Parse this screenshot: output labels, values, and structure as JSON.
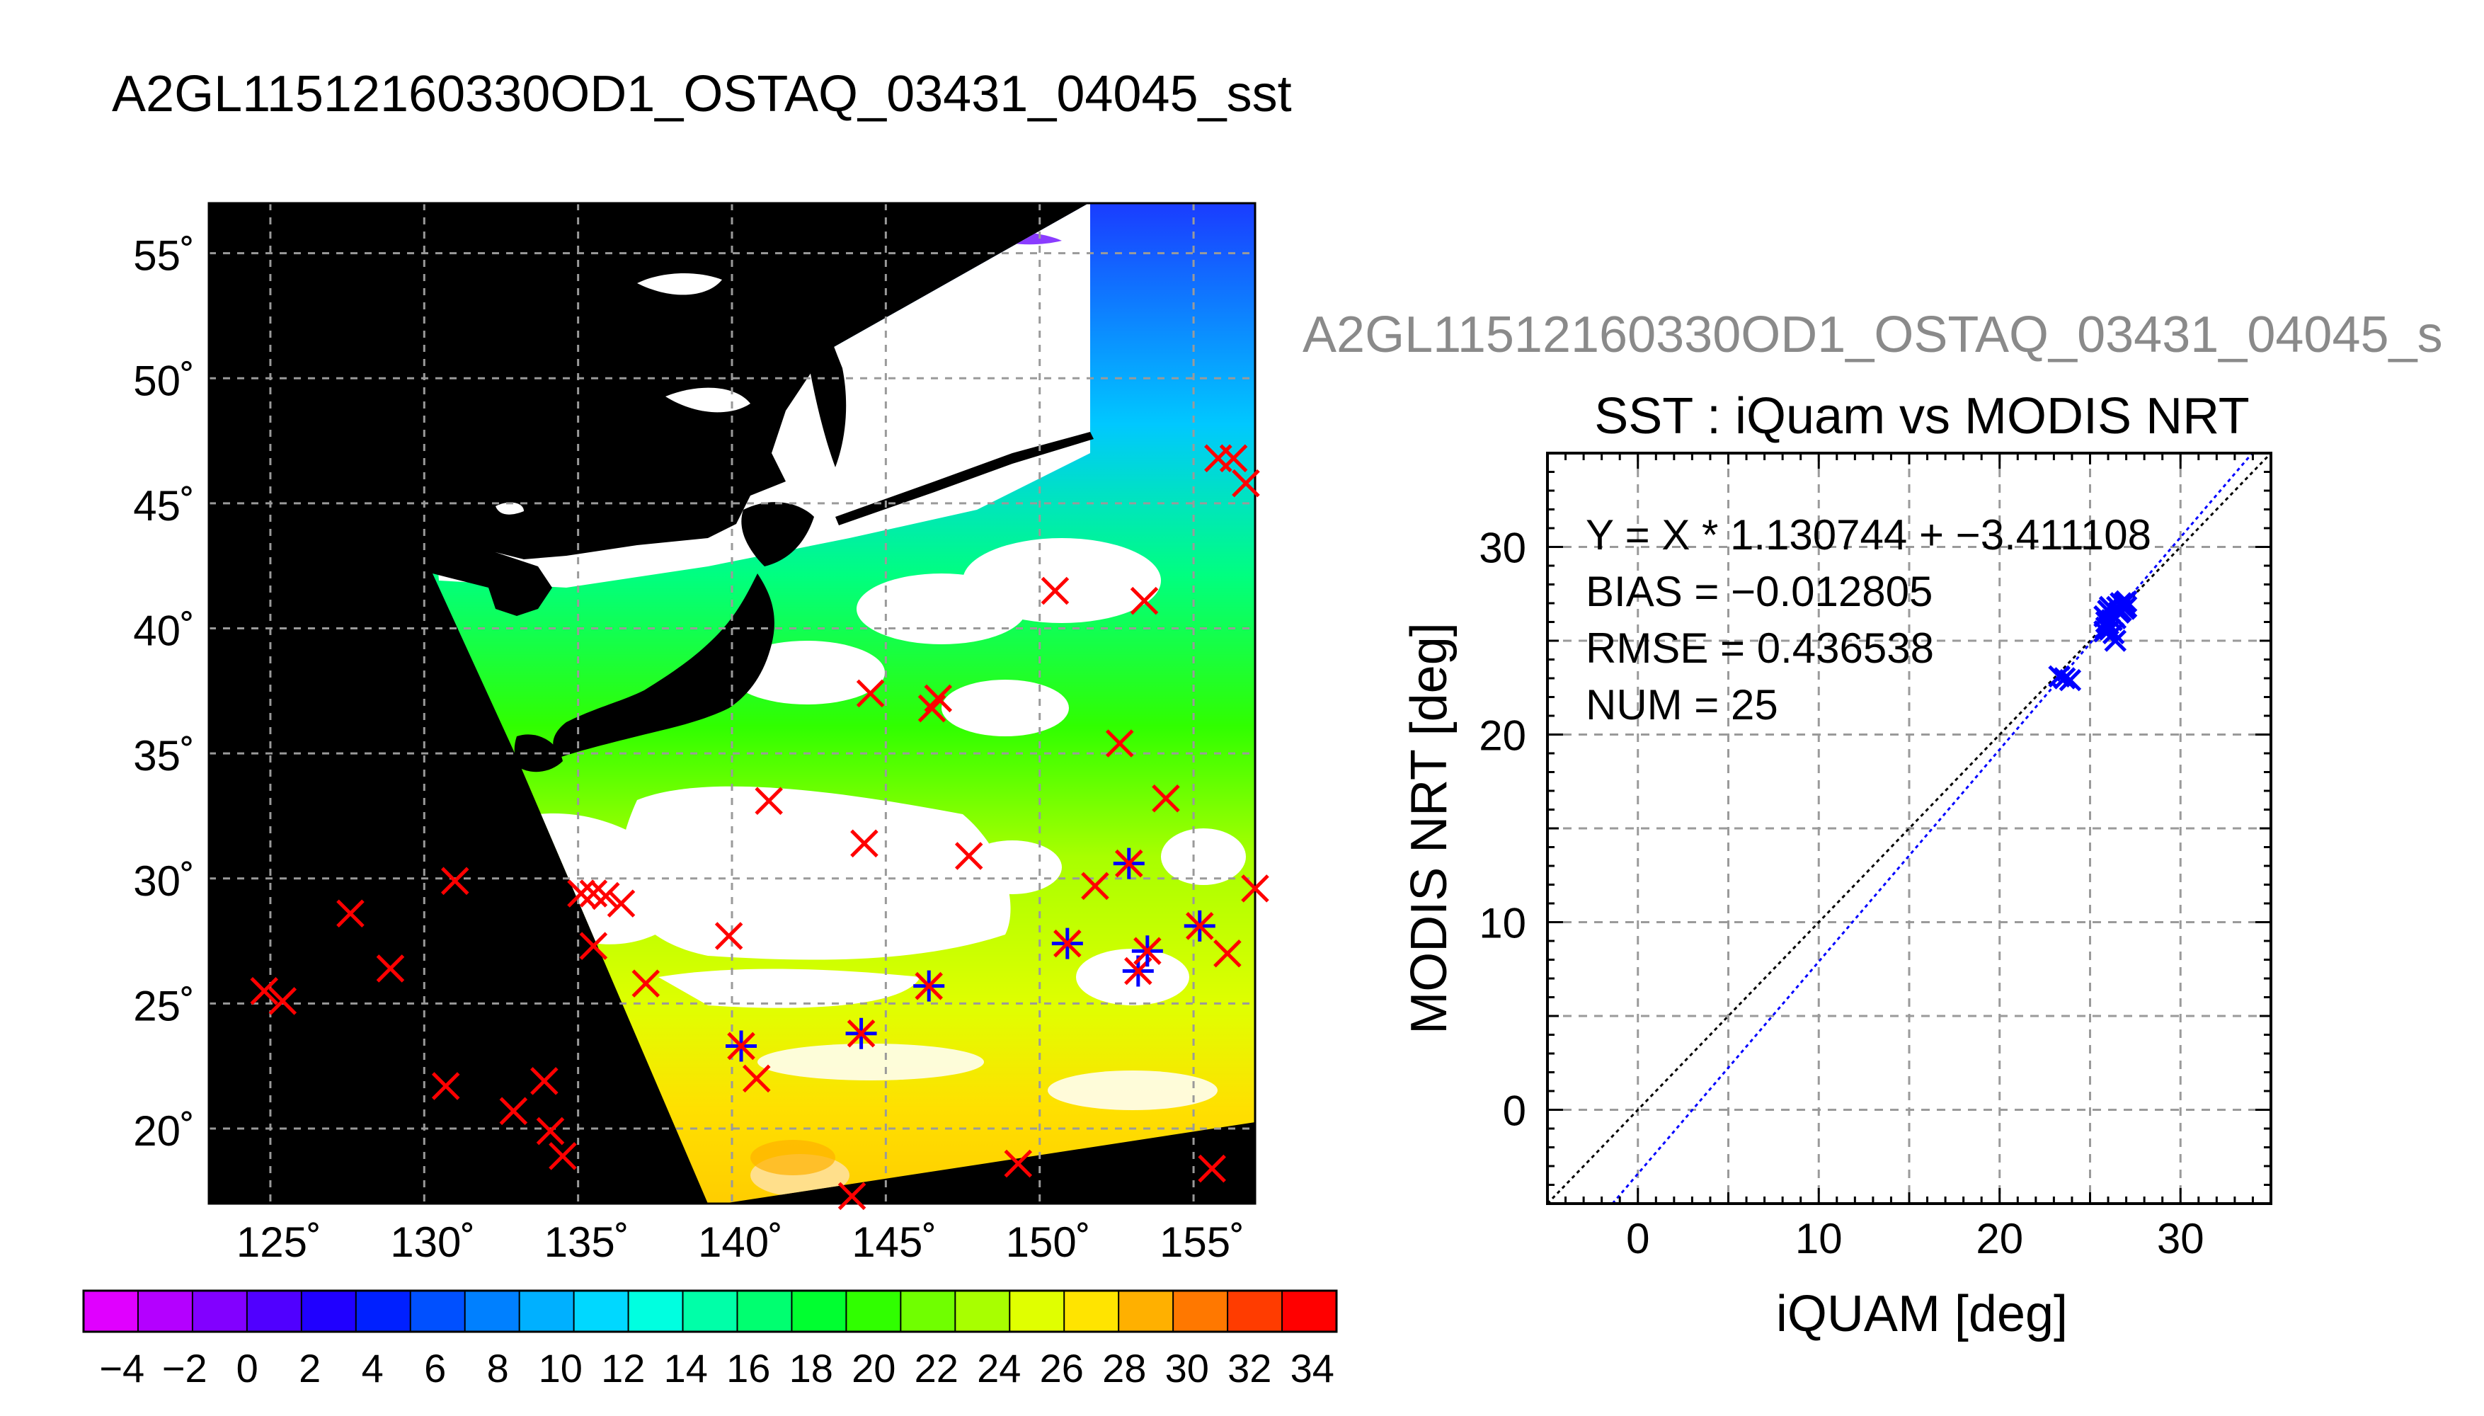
{
  "page": {
    "title": "A2GL11512160330OD1_OSTAQ_03431_04045_sst",
    "right_title": "A2GL11512160330OD1_OSTAQ_03431_04045_s"
  },
  "map": {
    "lat_labels": [
      "55˚",
      "50˚",
      "45˚",
      "40˚",
      "35˚",
      "30˚",
      "25˚",
      "20˚"
    ],
    "lon_labels": [
      "125˚",
      "130˚",
      "135˚",
      "140˚",
      "145˚",
      "150˚",
      "155˚"
    ],
    "colorbar_labels": [
      "−4",
      "−2",
      "0",
      "2",
      "4",
      "6",
      "8",
      "10",
      "12",
      "14",
      "16",
      "18",
      "20",
      "22",
      "24",
      "26",
      "28",
      "30",
      "32",
      "34"
    ],
    "colorbar_range": [
      -5,
      35
    ],
    "colorbar_colors": [
      "#e000ff",
      "#b400ff",
      "#8200ff",
      "#5000ff",
      "#2000ff",
      "#0020ff",
      "#0050ff",
      "#0080ff",
      "#00b0ff",
      "#00d8ff",
      "#00ffe0",
      "#00ffa8",
      "#00ff70",
      "#00ff30",
      "#30ff00",
      "#70ff00",
      "#a8ff00",
      "#e0ff00",
      "#ffe400",
      "#ffb000",
      "#ff7800",
      "#ff3c00",
      "#ff0000"
    ],
    "land_color": "#000000",
    "cloud_color": "#ffffff",
    "match_marker_colors": {
      "iquam": "#ff0000",
      "modis": "#0000ff"
    }
  },
  "chart_data": {
    "type": "scatter",
    "title": "SST : iQuam vs MODIS NRT",
    "xlabel": "iQUAM [deg]",
    "ylabel": "MODIS NRT [deg]",
    "xlim": [
      -5,
      35
    ],
    "ylim": [
      -5,
      35
    ],
    "xticks": [
      0,
      10,
      20,
      30
    ],
    "yticks": [
      0,
      10,
      20,
      30
    ],
    "grid": true,
    "annotations": [
      "Y = X * 1.130744 + −3.411108",
      "BIAS = −0.012805",
      "RMSE = 0.436538",
      "NUM = 25"
    ],
    "fit": {
      "slope": 1.130744,
      "intercept": -3.411108
    },
    "series": [
      {
        "marker": "x",
        "color": "#0000ff",
        "points": [
          [
            23.3,
            23.1
          ],
          [
            23.6,
            23.0
          ],
          [
            23.9,
            22.9
          ],
          [
            25.8,
            26.3
          ],
          [
            25.9,
            26.0
          ],
          [
            26.0,
            26.6
          ],
          [
            26.1,
            25.6
          ],
          [
            26.2,
            26.1
          ],
          [
            26.3,
            25.4
          ],
          [
            26.4,
            25.0
          ],
          [
            26.0,
            25.9
          ],
          [
            26.5,
            26.8
          ],
          [
            26.6,
            26.5
          ],
          [
            26.7,
            27.0
          ],
          [
            26.8,
            26.9
          ],
          [
            26.9,
            26.7
          ],
          [
            27.0,
            27.1
          ],
          [
            26.2,
            26.4
          ],
          [
            25.9,
            25.7
          ],
          [
            26.4,
            26.2
          ],
          [
            26.7,
            26.6
          ],
          [
            25.8,
            25.5
          ],
          [
            26.1,
            26.8
          ],
          [
            26.9,
            27.0
          ],
          [
            27.0,
            26.8
          ]
        ]
      }
    ]
  }
}
